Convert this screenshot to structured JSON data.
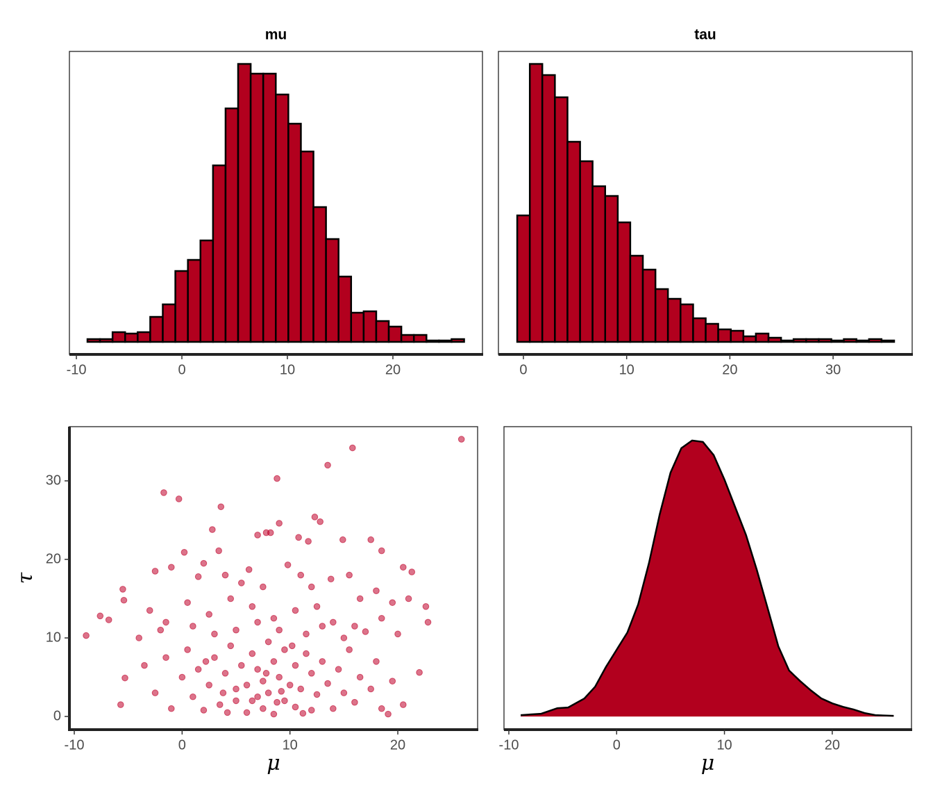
{
  "chart_data": [
    {
      "type": "histogram",
      "title": "mu",
      "color": "#b2001e",
      "bins": [
        -8.95,
        -7.76,
        -6.57,
        -5.38,
        -4.19,
        -3.0,
        -1.81,
        -0.62,
        0.57,
        1.76,
        2.95,
        4.14,
        5.33,
        6.52,
        7.71,
        8.9,
        10.09,
        11.28,
        12.47,
        13.66,
        14.85,
        16.04,
        17.23,
        18.42,
        19.61,
        20.8,
        21.99,
        23.18,
        24.37,
        25.56,
        26.75
      ],
      "counts": [
        2,
        2,
        7,
        6,
        7,
        18,
        27,
        51,
        59,
        73,
        127,
        168,
        200,
        193,
        193,
        178,
        157,
        137,
        97,
        74,
        47,
        21,
        22,
        15,
        11,
        5,
        5,
        1,
        1,
        2
      ],
      "xlim": [
        -10.66,
        28.49
      ],
      "xticks": [
        -10,
        0,
        10,
        20
      ],
      "ylim": [
        -9,
        209
      ]
    },
    {
      "type": "histogram",
      "title": "tau",
      "color": "#b2001e",
      "bins": [
        -0.6,
        0.62,
        1.83,
        3.05,
        4.27,
        5.49,
        6.7,
        7.92,
        9.14,
        10.35,
        11.57,
        12.79,
        14.0,
        15.22,
        16.44,
        17.66,
        18.87,
        20.09,
        21.31,
        22.52,
        23.74,
        24.96,
        26.17,
        27.39,
        28.61,
        29.83,
        31.04,
        32.26,
        33.48,
        34.69,
        35.91
      ],
      "counts": [
        91,
        200,
        192,
        176,
        144,
        130,
        112,
        105,
        86,
        62,
        52,
        38,
        31,
        27,
        17,
        13,
        9,
        8,
        4,
        6,
        3,
        1,
        2,
        2,
        2,
        1,
        2,
        1,
        2,
        1
      ],
      "xlim": [
        -2.42,
        37.66
      ],
      "xticks": [
        0,
        10,
        20,
        30
      ],
      "ylim": [
        -9,
        209
      ]
    },
    {
      "type": "scatter",
      "x_label": "μ",
      "y_label": "τ",
      "color": "#c0002a",
      "x": [
        25.9,
        15.8,
        13.5,
        8.8,
        -1.7,
        -0.3,
        3.6,
        12.3,
        12.8,
        9.0,
        2.8,
        7.0,
        7.8,
        8.2,
        10.8,
        14.9,
        17.5,
        11.7,
        3.4,
        18.5,
        -8.9,
        -7.6,
        -5.5,
        -5.4,
        -5.3,
        -5.7,
        22.6,
        22.8,
        22.0,
        20.5,
        19.1,
        21.3,
        20.5,
        -6.8,
        -2.5,
        -1.0,
        0.2,
        1.5,
        2.0,
        4.0,
        5.5,
        6.2,
        7.5,
        9.8,
        11.0,
        12.0,
        13.8,
        15.5,
        16.5,
        18.0,
        19.5,
        21.0,
        -3.0,
        -1.5,
        0.5,
        2.5,
        4.5,
        6.5,
        8.5,
        10.5,
        12.5,
        14.0,
        16.0,
        18.5,
        20.0,
        -4.0,
        -2.0,
        1.0,
        3.0,
        5.0,
        7.0,
        9.0,
        11.5,
        13.0,
        15.0,
        17.0,
        -3.5,
        -2.5,
        -1.5,
        -1.0,
        0.0,
        0.5,
        1.0,
        1.5,
        2.0,
        2.5,
        3.0,
        3.5,
        4.0,
        4.5,
        5.0,
        5.5,
        6.0,
        6.0,
        6.5,
        7.0,
        7.0,
        7.5,
        7.5,
        8.0,
        8.0,
        8.5,
        8.5,
        9.0,
        9.5,
        9.5,
        10.0,
        10.5,
        10.5,
        11.0,
        11.5,
        12.0,
        12.0,
        12.5,
        13.0,
        13.5,
        14.0,
        14.5,
        15.0,
        15.5,
        16.0,
        16.5,
        17.5,
        18.0,
        18.5,
        19.5,
        5.0,
        6.5,
        7.8,
        9.2,
        3.8,
        2.2,
        4.2,
        10.2,
        11.2,
        8.8
      ],
      "values": [
        35.3,
        34.2,
        32.0,
        30.3,
        28.5,
        27.7,
        26.7,
        25.4,
        24.8,
        24.6,
        23.8,
        23.1,
        23.4,
        23.4,
        22.8,
        22.5,
        22.5,
        22.3,
        21.1,
        21.1,
        10.3,
        12.8,
        16.2,
        14.8,
        4.9,
        1.5,
        14.0,
        12.0,
        5.6,
        1.5,
        0.3,
        18.4,
        19.0,
        12.3,
        18.5,
        19.0,
        20.9,
        17.8,
        19.5,
        18.0,
        17.0,
        18.7,
        16.5,
        19.3,
        18.0,
        16.5,
        17.5,
        18.0,
        15.0,
        16.0,
        14.5,
        15.0,
        13.5,
        12.0,
        14.5,
        13.0,
        15.0,
        14.0,
        12.5,
        13.5,
        14.0,
        12.0,
        11.5,
        12.5,
        10.5,
        10.0,
        11.0,
        11.5,
        10.5,
        11.0,
        12.0,
        11.0,
        10.5,
        11.5,
        10.0,
        10.8,
        6.5,
        3.0,
        7.5,
        1.0,
        5.0,
        8.5,
        2.5,
        6.0,
        0.8,
        4.0,
        7.5,
        1.5,
        5.5,
        9.0,
        2.0,
        6.5,
        0.5,
        4.0,
        8.0,
        2.5,
        6.0,
        1.0,
        4.5,
        9.5,
        3.0,
        7.0,
        0.3,
        5.0,
        2.0,
        8.5,
        4.0,
        6.5,
        1.2,
        3.5,
        8.0,
        0.8,
        5.5,
        2.8,
        7.0,
        4.2,
        1.0,
        6.0,
        3.0,
        8.5,
        1.8,
        5.0,
        3.5,
        7.0,
        1.0,
        4.5,
        3.5,
        2.0,
        5.5,
        3.2,
        3.0,
        7.0,
        0.5,
        9.0,
        0.4,
        1.8
      ],
      "xlim": [
        -10.45,
        27.4
      ],
      "xticks": [
        -10,
        0,
        10,
        20
      ],
      "ylim": [
        -1.68,
        36.9
      ],
      "yticks": [
        0,
        10,
        20,
        30
      ]
    },
    {
      "type": "area",
      "x_label": "μ",
      "color": "#b2001e",
      "x": [
        -8.9,
        -7,
        -5.5,
        -4.5,
        -3,
        -2,
        -1,
        0,
        1,
        2,
        3,
        4,
        5,
        6,
        7,
        8,
        9,
        10,
        11,
        12,
        13,
        14,
        15,
        16,
        17,
        18,
        19,
        20,
        21,
        22,
        23,
        24,
        25.7
      ],
      "values": [
        0.0004,
        0.0008,
        0.0024,
        0.0026,
        0.0052,
        0.0086,
        0.0143,
        0.0193,
        0.0243,
        0.0324,
        0.0444,
        0.0585,
        0.0705,
        0.0776,
        0.0798,
        0.0794,
        0.0756,
        0.0685,
        0.0605,
        0.0525,
        0.0424,
        0.0314,
        0.0203,
        0.0133,
        0.0103,
        0.0076,
        0.0052,
        0.0038,
        0.0028,
        0.002,
        0.001,
        0.0004,
        0.0002
      ],
      "xlim": [
        -10.45,
        27.35
      ],
      "xticks": [
        -10,
        0,
        10,
        20
      ],
      "ylim": [
        -0.0038,
        0.0838
      ]
    }
  ]
}
